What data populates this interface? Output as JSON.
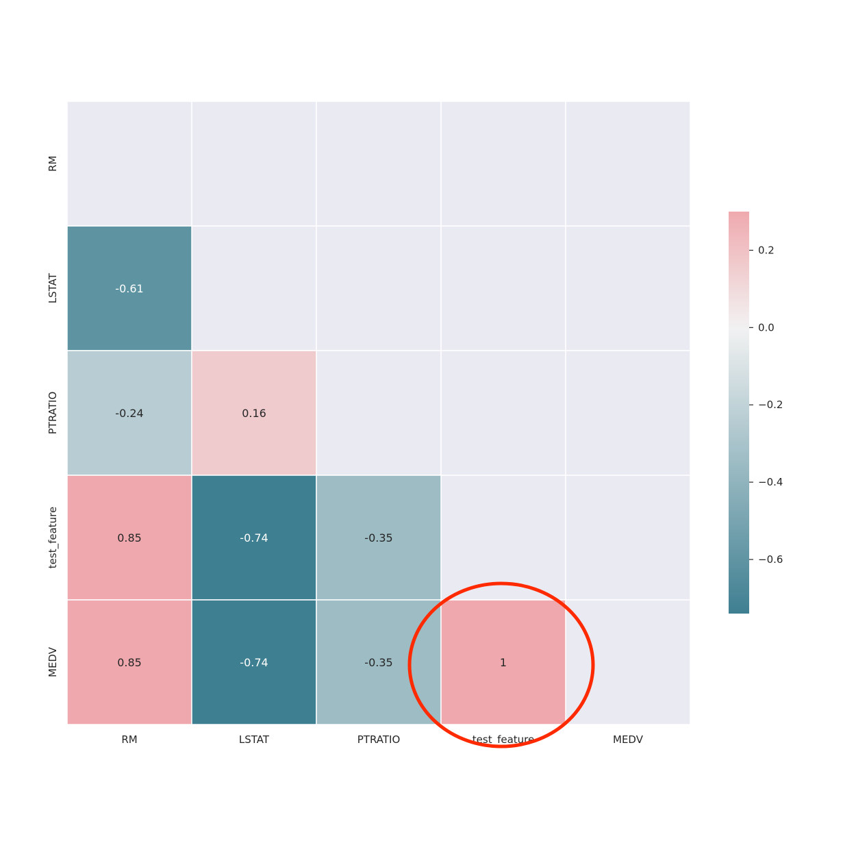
{
  "chart_data": {
    "type": "heatmap",
    "title": "",
    "xlabel": "",
    "ylabel": "",
    "rows": [
      "RM",
      "LSTAT",
      "PTRATIO",
      "test_feature",
      "MEDV"
    ],
    "columns": [
      "RM",
      "LSTAT",
      "PTRATIO",
      "test_feature",
      "MEDV"
    ],
    "cells": [
      {
        "row": "LSTAT",
        "col": "RM",
        "value": -0.61,
        "label": "-0.61"
      },
      {
        "row": "PTRATIO",
        "col": "RM",
        "value": -0.24,
        "label": "-0.24"
      },
      {
        "row": "PTRATIO",
        "col": "LSTAT",
        "value": 0.16,
        "label": "0.16"
      },
      {
        "row": "test_feature",
        "col": "RM",
        "value": 0.85,
        "label": "0.85"
      },
      {
        "row": "test_feature",
        "col": "LSTAT",
        "value": -0.74,
        "label": "-0.74"
      },
      {
        "row": "test_feature",
        "col": "PTRATIO",
        "value": -0.35,
        "label": "-0.35"
      },
      {
        "row": "MEDV",
        "col": "RM",
        "value": 0.85,
        "label": "0.85"
      },
      {
        "row": "MEDV",
        "col": "LSTAT",
        "value": -0.74,
        "label": "-0.74"
      },
      {
        "row": "MEDV",
        "col": "PTRATIO",
        "value": -0.35,
        "label": "-0.35"
      },
      {
        "row": "MEDV",
        "col": "test_feature",
        "value": 1,
        "label": "1"
      }
    ],
    "masked": "upper triangle including diagonal",
    "colorbar": {
      "vmin": -0.74,
      "vmax": 0.3,
      "ticks": [
        0.2,
        0.0,
        -0.2,
        -0.4,
        -0.6
      ],
      "tick_labels": [
        "0.2",
        "0.0",
        "−0.2",
        "−0.4",
        "−0.6"
      ],
      "color_low": "#3e7f91",
      "color_mid": "#f2f2f2",
      "color_high": "#efa9ae"
    },
    "annotation": {
      "type": "circle",
      "target": "MEDV / test_feature",
      "color": "#ff2a00"
    },
    "colors": {
      "masked_cell": "#eaeaf2",
      "grid_line": "#ffffff",
      "text_dark": "#262626",
      "text_light": "#ffffff"
    }
  }
}
